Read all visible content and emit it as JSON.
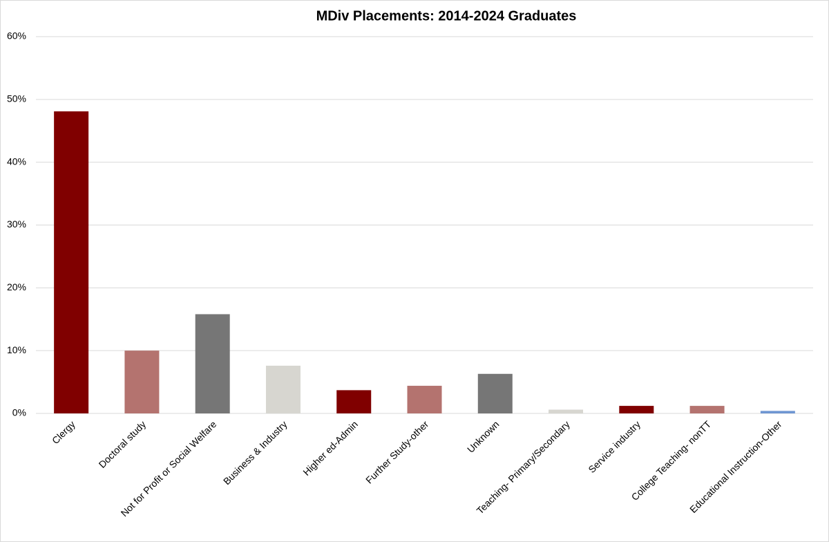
{
  "chart_data": {
    "type": "bar",
    "title": "MDiv Placements: 2014-2024 Graduates",
    "categories": [
      "Clergy",
      "Doctoral study",
      "Not for Profit or Social Welfare",
      "Business & Industry",
      "Higher ed-Admin",
      "Further Study-other",
      "Unknown",
      "Teaching- Primary/Secondary",
      "Service industry",
      "College Teaching- nonTT",
      "Educational Instruction-Other"
    ],
    "values": [
      48.1,
      10.0,
      15.8,
      7.6,
      3.7,
      4.4,
      6.3,
      0.6,
      1.2,
      1.2,
      0.4
    ],
    "colors": [
      "#800000",
      "#b4736f",
      "#767676",
      "#d7d6d0",
      "#800000",
      "#b4736f",
      "#767676",
      "#d7d6d0",
      "#800000",
      "#b4736f",
      "#6f96d2"
    ],
    "ylim": [
      0,
      60
    ],
    "yticks": [
      {
        "value": 0,
        "label": "0%"
      },
      {
        "value": 10,
        "label": "10%"
      },
      {
        "value": 20,
        "label": "20%"
      },
      {
        "value": 30,
        "label": "30%"
      },
      {
        "value": 40,
        "label": "40%"
      },
      {
        "value": 50,
        "label": "50%"
      },
      {
        "value": 60,
        "label": "60%"
      }
    ],
    "grid": true
  }
}
